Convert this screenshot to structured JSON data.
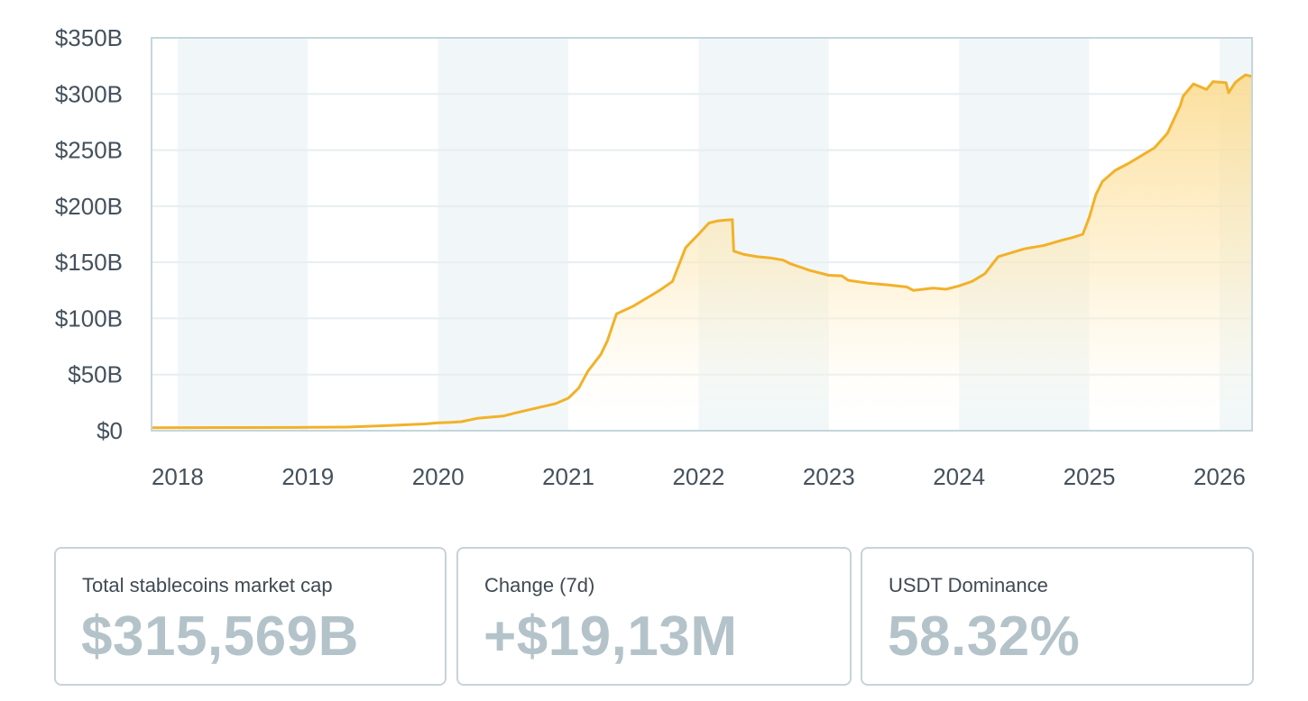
{
  "chart_data": {
    "type": "area",
    "title": "",
    "xlabel": "",
    "ylabel": "",
    "x_ticks": [
      "2018",
      "2019",
      "2020",
      "2021",
      "2022",
      "2023",
      "2024",
      "2025",
      "2026"
    ],
    "y_ticks": [
      "$0",
      "$50B",
      "$100B",
      "$150B",
      "$200B",
      "$250B",
      "$300B",
      "$350B"
    ],
    "xlim": [
      2017.8,
      2026.25
    ],
    "ylim": [
      0,
      350
    ],
    "y_unit": "$B",
    "grid": true,
    "line_color": "#f2b12a",
    "fill_color": "#fcd98a",
    "band_color": "#f1f7f8",
    "series": [
      {
        "x": [
          2017.8,
          2018.0,
          2018.5,
          2018.9,
          2019.0,
          2019.3,
          2019.6,
          2019.9,
          2020.0,
          2020.1,
          2020.18,
          2020.3,
          2020.5,
          2020.6,
          2020.75,
          2020.9,
          2021.0,
          2021.08,
          2021.15,
          2021.25,
          2021.3,
          2021.37,
          2021.5,
          2021.6,
          2021.7,
          2021.8,
          2021.9,
          2022.0,
          2022.08,
          2022.15,
          2022.2,
          2022.26,
          2022.27,
          2022.35,
          2022.45,
          2022.55,
          2022.65,
          2022.7,
          2022.85,
          2023.0,
          2023.1,
          2023.15,
          2023.3,
          2023.45,
          2023.6,
          2023.65,
          2023.8,
          2023.9,
          2024.0,
          2024.1,
          2024.2,
          2024.3,
          2024.5,
          2024.6,
          2024.65,
          2024.8,
          2024.87,
          2024.95,
          2025.0,
          2025.05,
          2025.1,
          2025.2,
          2025.3,
          2025.4,
          2025.5,
          2025.6,
          2025.7,
          2025.72,
          2025.8,
          2025.9,
          2025.95,
          2026.05,
          2026.07,
          2026.08,
          2026.12,
          2026.15,
          2026.2,
          2026.25
        ],
        "values": [
          2.6,
          2.7,
          2.8,
          2.9,
          3.0,
          3.2,
          4.5,
          6.0,
          7.0,
          7.4,
          8.0,
          11.0,
          13.0,
          16.0,
          20.0,
          24.0,
          29.0,
          38.0,
          53.0,
          68.0,
          80.0,
          104.0,
          111.0,
          118.0,
          125.0,
          133.0,
          163.0,
          175.0,
          185.0,
          187.0,
          187.5,
          188.0,
          160.0,
          157.0,
          155.0,
          154.0,
          152.0,
          149.0,
          143.0,
          138.5,
          138.0,
          134.0,
          131.5,
          130.0,
          128.0,
          125.0,
          127.0,
          126.0,
          129.0,
          133.0,
          140.0,
          155.0,
          162.0,
          164.0,
          165.0,
          170.0,
          172.0,
          175.0,
          190.0,
          210.0,
          222.0,
          232.0,
          238.0,
          245.0,
          252.0,
          265.0,
          290.0,
          298.0,
          309.0,
          304.0,
          311.0,
          310.0,
          301.0,
          303.0,
          310.0,
          313.0,
          317.0,
          315.6
        ]
      }
    ]
  },
  "stats": [
    {
      "label": "Total stablecoins market cap",
      "value": "$315,569B"
    },
    {
      "label": "Change (7d)",
      "value": "+$19,13M"
    },
    {
      "label": "USDT Dominance",
      "value": "58.32%"
    }
  ]
}
